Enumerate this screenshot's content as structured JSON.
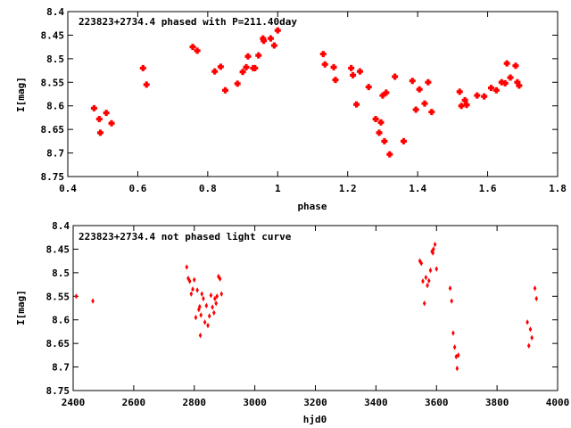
{
  "chart_data": [
    {
      "type": "scatter",
      "title": "223823+2734.4 phased with P=211.40day",
      "xlabel": "phase",
      "ylabel": "I[mag]",
      "xlim": [
        0.4,
        1.8
      ],
      "ylim": [
        8.75,
        8.4
      ],
      "y_inverted": true,
      "xticks": [
        "0.4",
        "0.6",
        "0.8",
        "1",
        "1.2",
        "1.4",
        "1.6",
        "1.8"
      ],
      "xtick_values": [
        0.4,
        0.6,
        0.8,
        1.0,
        1.2,
        1.4,
        1.6,
        1.8
      ],
      "yticks": [
        "8.4",
        "8.45",
        "8.5",
        "8.55",
        "8.6",
        "8.65",
        "8.7",
        "8.75"
      ],
      "ytick_values": [
        8.4,
        8.45,
        8.5,
        8.55,
        8.6,
        8.65,
        8.7,
        8.75
      ],
      "marker": "filled-star",
      "color": "#ff0000",
      "points": [
        [
          0.475,
          8.605
        ],
        [
          0.49,
          8.628
        ],
        [
          0.493,
          8.657
        ],
        [
          0.51,
          8.615
        ],
        [
          0.525,
          8.637
        ],
        [
          0.615,
          8.52
        ],
        [
          0.625,
          8.555
        ],
        [
          0.757,
          8.475
        ],
        [
          0.77,
          8.483
        ],
        [
          0.82,
          8.527
        ],
        [
          0.837,
          8.517
        ],
        [
          0.85,
          8.567
        ],
        [
          0.885,
          8.553
        ],
        [
          0.9,
          8.528
        ],
        [
          0.91,
          8.518
        ],
        [
          0.915,
          8.495
        ],
        [
          0.93,
          8.52
        ],
        [
          0.935,
          8.52
        ],
        [
          0.945,
          8.493
        ],
        [
          0.958,
          8.457
        ],
        [
          0.96,
          8.462
        ],
        [
          0.98,
          8.457
        ],
        [
          0.99,
          8.472
        ],
        [
          1.0,
          8.44
        ],
        [
          1.13,
          8.49
        ],
        [
          1.135,
          8.512
        ],
        [
          1.16,
          8.518
        ],
        [
          1.165,
          8.545
        ],
        [
          1.21,
          8.52
        ],
        [
          1.215,
          8.535
        ],
        [
          1.225,
          8.597
        ],
        [
          1.235,
          8.527
        ],
        [
          1.26,
          8.56
        ],
        [
          1.28,
          8.628
        ],
        [
          1.29,
          8.657
        ],
        [
          1.295,
          8.635
        ],
        [
          1.3,
          8.578
        ],
        [
          1.305,
          8.675
        ],
        [
          1.31,
          8.572
        ],
        [
          1.32,
          8.703
        ],
        [
          1.335,
          8.538
        ],
        [
          1.36,
          8.675
        ],
        [
          1.385,
          8.547
        ],
        [
          1.395,
          8.608
        ],
        [
          1.405,
          8.565
        ],
        [
          1.42,
          8.595
        ],
        [
          1.43,
          8.55
        ],
        [
          1.44,
          8.613
        ],
        [
          1.52,
          8.57
        ],
        [
          1.525,
          8.6
        ],
        [
          1.535,
          8.588
        ],
        [
          1.54,
          8.598
        ],
        [
          1.57,
          8.578
        ],
        [
          1.59,
          8.58
        ],
        [
          1.61,
          8.562
        ],
        [
          1.625,
          8.567
        ],
        [
          1.64,
          8.55
        ],
        [
          1.65,
          8.552
        ],
        [
          1.655,
          8.51
        ],
        [
          1.665,
          8.54
        ],
        [
          1.68,
          8.515
        ],
        [
          1.685,
          8.55
        ],
        [
          1.69,
          8.557
        ]
      ]
    },
    {
      "type": "scatter",
      "title": "223823+2734.4 not phased light curve",
      "xlabel": "hjd0",
      "ylabel": "I[mag]",
      "xlim": [
        2400,
        4000
      ],
      "ylim": [
        8.75,
        8.4
      ],
      "y_inverted": true,
      "xticks": [
        "2400",
        "2600",
        "2800",
        "3000",
        "3200",
        "3400",
        "3600",
        "3800",
        "4000"
      ],
      "xtick_values": [
        2400,
        2600,
        2800,
        3000,
        3200,
        3400,
        3600,
        3800,
        4000
      ],
      "yticks": [
        "8.4",
        "8.45",
        "8.5",
        "8.55",
        "8.6",
        "8.65",
        "8.7",
        "8.75"
      ],
      "ytick_values": [
        8.4,
        8.45,
        8.5,
        8.55,
        8.6,
        8.65,
        8.7,
        8.75
      ],
      "marker": "diamond",
      "color": "#ff0000",
      "points": [
        [
          2410,
          8.55
        ],
        [
          2465,
          8.56
        ],
        [
          2775,
          8.488
        ],
        [
          2780,
          8.512
        ],
        [
          2785,
          8.518
        ],
        [
          2790,
          8.545
        ],
        [
          2795,
          8.535
        ],
        [
          2800,
          8.515
        ],
        [
          2805,
          8.595
        ],
        [
          2810,
          8.537
        ],
        [
          2815,
          8.578
        ],
        [
          2818,
          8.572
        ],
        [
          2820,
          8.633
        ],
        [
          2822,
          8.59
        ],
        [
          2825,
          8.545
        ],
        [
          2830,
          8.555
        ],
        [
          2835,
          8.605
        ],
        [
          2840,
          8.57
        ],
        [
          2845,
          8.612
        ],
        [
          2850,
          8.592
        ],
        [
          2855,
          8.548
        ],
        [
          2860,
          8.573
        ],
        [
          2865,
          8.585
        ],
        [
          2868,
          8.555
        ],
        [
          2872,
          8.565
        ],
        [
          2875,
          8.55
        ],
        [
          2880,
          8.508
        ],
        [
          2885,
          8.513
        ],
        [
          2890,
          8.545
        ],
        [
          3545,
          8.475
        ],
        [
          3550,
          8.48
        ],
        [
          3555,
          8.518
        ],
        [
          3560,
          8.565
        ],
        [
          3565,
          8.51
        ],
        [
          3570,
          8.527
        ],
        [
          3575,
          8.517
        ],
        [
          3580,
          8.495
        ],
        [
          3585,
          8.455
        ],
        [
          3588,
          8.458
        ],
        [
          3590,
          8.45
        ],
        [
          3595,
          8.44
        ],
        [
          3600,
          8.492
        ],
        [
          3645,
          8.533
        ],
        [
          3650,
          8.56
        ],
        [
          3655,
          8.628
        ],
        [
          3660,
          8.658
        ],
        [
          3665,
          8.678
        ],
        [
          3668,
          8.703
        ],
        [
          3672,
          8.675
        ],
        [
          3900,
          8.605
        ],
        [
          3905,
          8.655
        ],
        [
          3910,
          8.62
        ],
        [
          3915,
          8.638
        ],
        [
          3925,
          8.533
        ],
        [
          3930,
          8.555
        ]
      ]
    }
  ]
}
